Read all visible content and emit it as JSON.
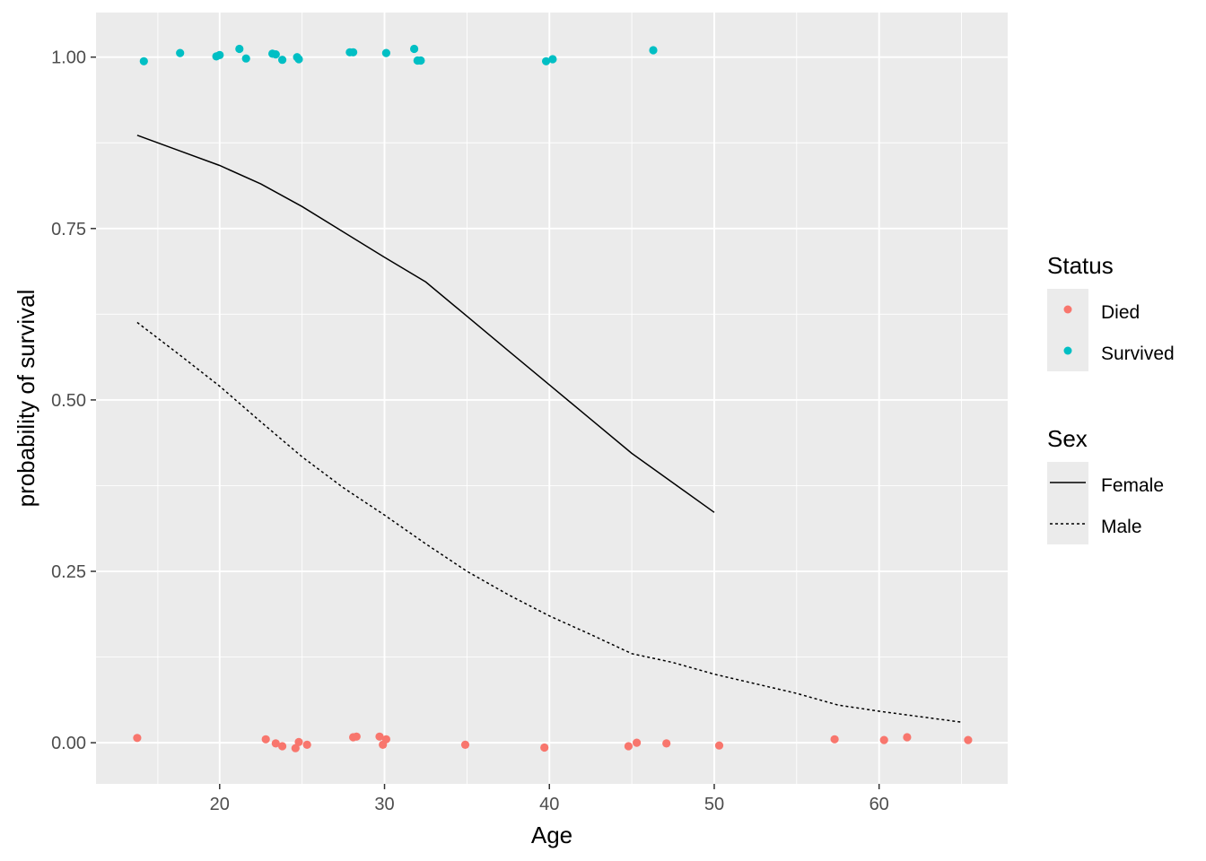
{
  "chart_data": {
    "type": "scatter",
    "xlabel": "Age",
    "ylabel": "probability of survival",
    "xlim": [
      12.5,
      67.8
    ],
    "ylim": [
      -0.06,
      1.065
    ],
    "x_ticks": [
      20,
      30,
      40,
      50,
      60
    ],
    "x_tick_labels": [
      "20",
      "30",
      "40",
      "50",
      "60"
    ],
    "y_ticks": [
      0,
      0.25,
      0.5,
      0.75,
      1.0
    ],
    "y_tick_labels": [
      "0.00",
      "0.25",
      "0.50",
      "0.75",
      "1.00"
    ],
    "grid": true,
    "legend_placement": "right",
    "points": {
      "Survived": [
        [
          15.4,
          0.994
        ],
        [
          17.6,
          1.006
        ],
        [
          19.8,
          1.001
        ],
        [
          20.0,
          1.003
        ],
        [
          21.2,
          1.012
        ],
        [
          21.6,
          0.998
        ],
        [
          23.2,
          1.005
        ],
        [
          23.4,
          1.004
        ],
        [
          23.8,
          0.996
        ],
        [
          24.7,
          1.0
        ],
        [
          24.8,
          0.997
        ],
        [
          27.9,
          1.007
        ],
        [
          28.1,
          1.007
        ],
        [
          30.1,
          1.006
        ],
        [
          31.8,
          1.012
        ],
        [
          32.0,
          0.995
        ],
        [
          32.2,
          0.995
        ],
        [
          39.8,
          0.994
        ],
        [
          40.2,
          0.997
        ],
        [
          46.3,
          1.01
        ]
      ],
      "Died": [
        [
          15.0,
          0.007
        ],
        [
          22.8,
          0.005
        ],
        [
          23.4,
          -0.001
        ],
        [
          23.8,
          -0.005
        ],
        [
          24.6,
          -0.008
        ],
        [
          24.8,
          0.001
        ],
        [
          25.3,
          -0.003
        ],
        [
          28.1,
          0.008
        ],
        [
          28.3,
          0.009
        ],
        [
          29.7,
          0.009
        ],
        [
          29.9,
          -0.003
        ],
        [
          30.1,
          0.005
        ],
        [
          34.9,
          -0.003
        ],
        [
          39.7,
          -0.007
        ],
        [
          44.8,
          -0.005
        ],
        [
          45.3,
          0.0
        ],
        [
          47.1,
          -0.001
        ],
        [
          50.3,
          -0.004
        ],
        [
          57.3,
          0.005
        ],
        [
          60.3,
          0.004
        ],
        [
          61.7,
          0.008
        ],
        [
          65.4,
          0.004
        ]
      ]
    },
    "series": [
      {
        "name": "Female",
        "linetype": "solid",
        "x": [
          15,
          17.5,
          20,
          22.5,
          25,
          27.5,
          30,
          32.5,
          35,
          37.5,
          40,
          42.5,
          45,
          47.5,
          50
        ],
        "y": [
          0.886,
          0.864,
          0.842,
          0.815,
          0.782,
          0.745,
          0.708,
          0.672,
          0.622,
          0.572,
          0.522,
          0.472,
          0.422,
          0.379,
          0.336
        ]
      },
      {
        "name": "Male",
        "linetype": "dashed",
        "x": [
          15,
          17.5,
          20,
          22.5,
          25,
          27.5,
          30,
          32.5,
          35,
          37.5,
          40,
          42.5,
          45,
          47.5,
          50,
          52.5,
          55,
          57.5,
          60,
          62.5,
          65
        ],
        "y": [
          0.613,
          0.567,
          0.52,
          0.468,
          0.417,
          0.372,
          0.332,
          0.29,
          0.25,
          0.216,
          0.185,
          0.158,
          0.13,
          0.117,
          0.1,
          0.086,
          0.072,
          0.055,
          0.046,
          0.038,
          0.03
        ]
      }
    ],
    "legend": {
      "status_title": "Status",
      "status_items": [
        {
          "label": "Died",
          "color": "#F8766D"
        },
        {
          "label": "Survived",
          "color": "#00BFC4"
        }
      ],
      "sex_title": "Sex",
      "sex_items": [
        {
          "label": "Female",
          "linetype": "solid"
        },
        {
          "label": "Male",
          "linetype": "dashed"
        }
      ]
    },
    "colors": {
      "Died": "#F8766D",
      "Survived": "#00BFC4",
      "panel_background": "#EBEBEB",
      "grid": "#FFFFFF",
      "line": "#000000"
    }
  }
}
